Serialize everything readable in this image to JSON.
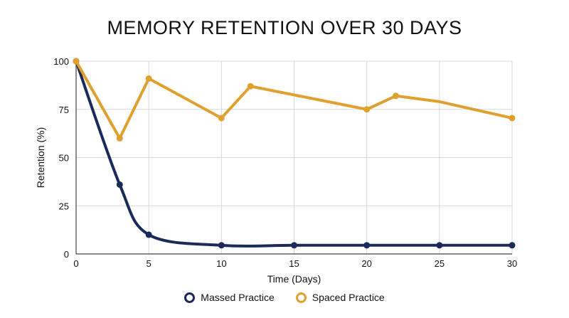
{
  "chart_data": {
    "type": "line",
    "title": "MEMORY RETENTION OVER 30 DAYS",
    "xlabel": "Time (Days)",
    "ylabel": "Retention (%)",
    "xlim": [
      0,
      30
    ],
    "ylim": [
      0,
      100
    ],
    "xticks": [
      "0",
      "5",
      "10",
      "15",
      "20",
      "25",
      "30"
    ],
    "yticks": [
      "0",
      "25",
      "50",
      "75",
      "100"
    ],
    "grid": true,
    "legend_position": "bottom-center",
    "series": [
      {
        "name": "Massed Practice",
        "color": "#1c2a5a",
        "smooth": true,
        "points": [
          [
            0,
            100
          ],
          [
            3,
            36
          ],
          [
            5,
            10
          ],
          [
            10,
            4.5
          ],
          [
            15,
            4.5
          ],
          [
            20,
            4.5
          ],
          [
            25,
            4.5
          ],
          [
            30,
            4.5
          ]
        ]
      },
      {
        "name": "Spaced Practice",
        "color": "#e0a030",
        "smooth": false,
        "points": [
          [
            0,
            100
          ],
          [
            3,
            60
          ],
          [
            5,
            91
          ],
          [
            10,
            70.5
          ],
          [
            12,
            87
          ],
          [
            20,
            75
          ],
          [
            22,
            82
          ],
          [
            25,
            79
          ],
          [
            30,
            70.5
          ]
        ],
        "markers_at": [
          0,
          3,
          5,
          10,
          12,
          20,
          22,
          30
        ]
      }
    ]
  }
}
